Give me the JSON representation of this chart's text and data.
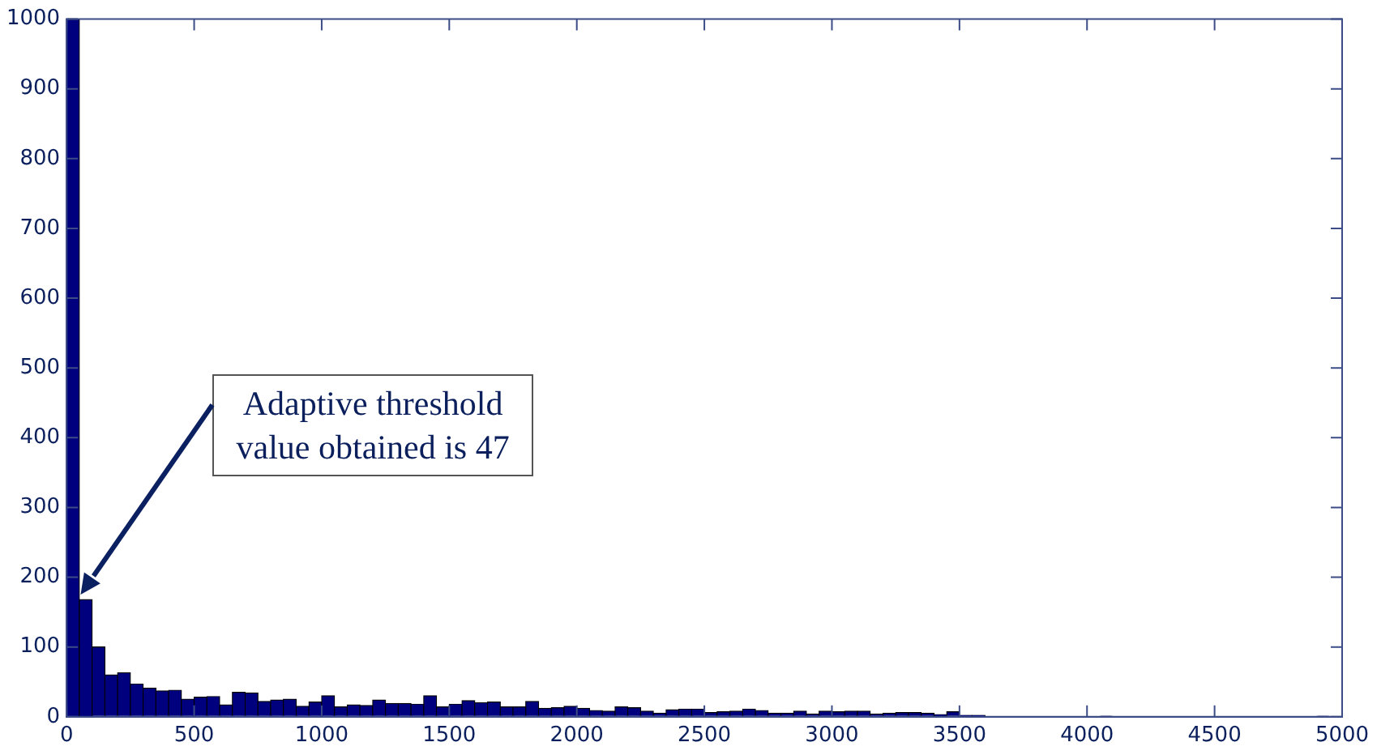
{
  "chart_data": {
    "type": "histogram",
    "bins": [
      0,
      50,
      100,
      150,
      200,
      250,
      300,
      350,
      400,
      450,
      500,
      550,
      600,
      650,
      700,
      750,
      800,
      850,
      900,
      950,
      1000,
      1050,
      1100,
      1150,
      1200,
      1250,
      1300,
      1350,
      1400,
      1450,
      1500,
      1550,
      1600,
      1650,
      1700,
      1750,
      1800,
      1850,
      1900,
      1950,
      2000,
      2050,
      2100,
      2150,
      2200,
      2250,
      2300,
      2350,
      2400,
      2450,
      2500,
      2550,
      2600,
      2650,
      2700,
      2750,
      2800,
      2850,
      2900,
      2950,
      3000,
      3050,
      3100,
      3150,
      3200,
      3250,
      3300,
      3350,
      3400,
      3450,
      3500,
      3550,
      3600,
      3650,
      3700,
      3750,
      3800,
      3850,
      3900,
      3950,
      4000,
      4050,
      4100,
      4150,
      4200,
      4250,
      4300,
      4350,
      4400,
      4450,
      4500,
      4550,
      4600,
      4650,
      4700,
      4750,
      4800,
      4850,
      4900,
      4950,
      5000
    ],
    "values": [
      1000,
      168,
      100,
      60,
      63,
      47,
      41,
      37,
      38,
      25,
      28,
      29,
      17,
      35,
      34,
      22,
      24,
      25,
      15,
      21,
      30,
      14,
      17,
      16,
      24,
      19,
      19,
      18,
      30,
      14,
      18,
      23,
      20,
      21,
      14,
      14,
      22,
      12,
      13,
      15,
      12,
      9,
      8,
      14,
      13,
      8,
      5,
      10,
      11,
      11,
      6,
      7,
      8,
      11,
      9,
      5,
      5,
      8,
      4,
      8,
      7,
      8,
      8,
      4,
      5,
      6,
      6,
      5,
      3,
      7,
      2,
      2,
      0,
      0,
      0,
      0,
      0,
      0,
      0,
      0,
      0,
      1,
      0,
      0,
      0,
      0,
      0,
      0,
      0,
      0,
      0,
      0,
      0,
      0,
      0,
      0,
      0,
      0,
      1,
      0
    ],
    "color": "#00007f",
    "xlim": [
      0,
      5000
    ],
    "xticks": [
      0,
      500,
      1000,
      1500,
      2000,
      2500,
      3000,
      3500,
      4000,
      4500,
      5000
    ],
    "ylim": [
      0,
      1000
    ],
    "yticks": [
      0,
      100,
      200,
      300,
      400,
      500,
      600,
      700,
      800,
      900,
      1000
    ],
    "grid": false,
    "annotations": [
      "Adaptive threshold\nvalue obtained is 47"
    ]
  }
}
